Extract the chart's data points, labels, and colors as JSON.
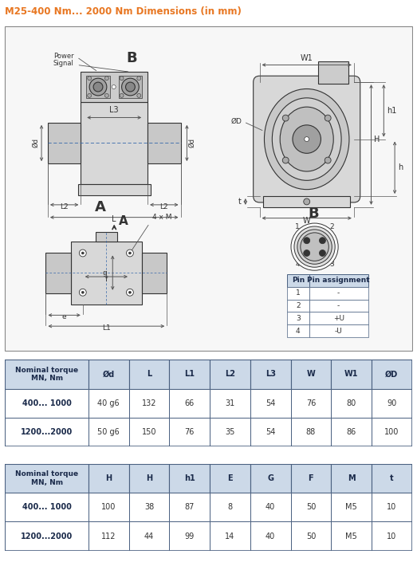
{
  "title": "M25-400 Nm... 2000 Nm Dimensions (in mm)",
  "title_color": "#E87722",
  "bg_color": "#ffffff",
  "body_fill": "#d8d8d8",
  "shaft_fill": "#c8c8c8",
  "connector_fill": "#cccccc",
  "dark_line": "#333333",
  "dim_color": "#555555",
  "centerline_color": "#3366aa",
  "table1_headers": [
    "Nominal torque\nMN, Nm",
    "Ød",
    "L",
    "L1",
    "L2",
    "L3",
    "W",
    "W1",
    "ØD"
  ],
  "table1_rows": [
    [
      "400... 1000",
      "40 g6",
      "132",
      "66",
      "31",
      "54",
      "76",
      "80",
      "90"
    ],
    [
      "1200...2000",
      "50 g6",
      "150",
      "76",
      "35",
      "54",
      "88",
      "86",
      "100"
    ]
  ],
  "table2_headers": [
    "Nominal torque\nMN, Nm",
    "H",
    "H",
    "h1",
    "E",
    "G",
    "F",
    "M",
    "t"
  ],
  "table2_rows": [
    [
      "400... 1000",
      "100",
      "38",
      "87",
      "8",
      "40",
      "50",
      "M5",
      "10"
    ],
    [
      "1200...2000",
      "112",
      "44",
      "99",
      "14",
      "40",
      "50",
      "M5",
      "10"
    ]
  ],
  "header_bg": "#ccd9e8",
  "table_border": "#4a6080",
  "orange": "#E87722"
}
